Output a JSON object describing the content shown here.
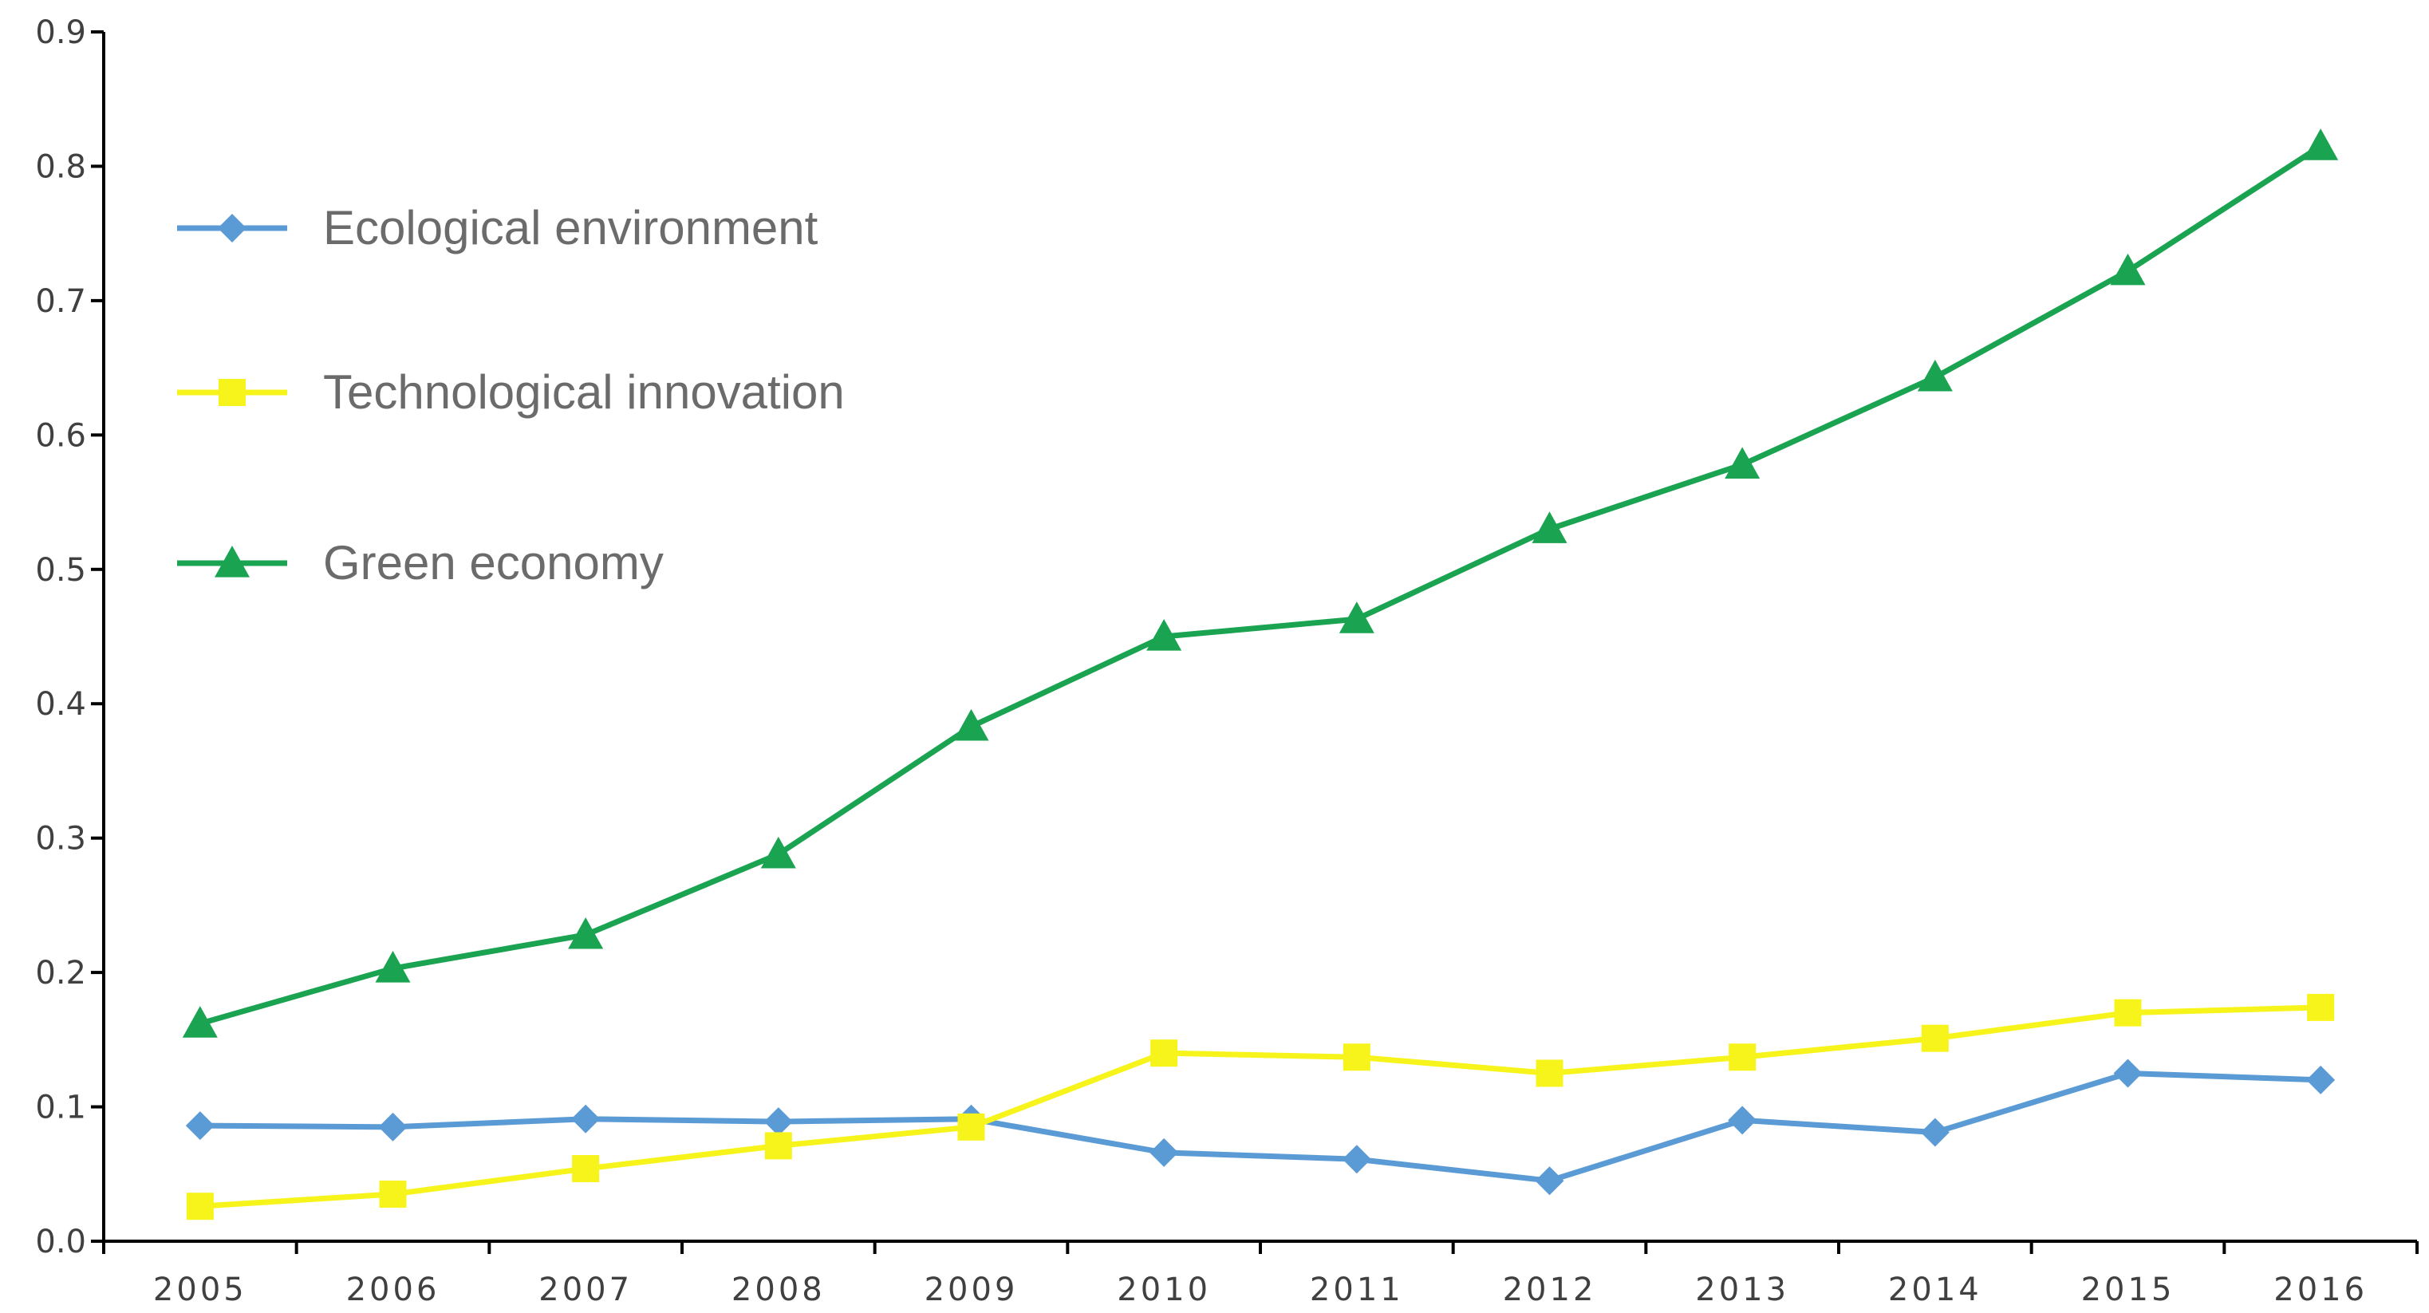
{
  "chart_data": {
    "type": "line",
    "title": "",
    "xlabel": "",
    "ylabel": "",
    "categories": [
      "2005",
      "2006",
      "2007",
      "2008",
      "2009",
      "2010",
      "2011",
      "2012",
      "2013",
      "2014",
      "2015",
      "2016"
    ],
    "ylim": [
      0,
      0.9
    ],
    "yticks": [
      "0.0",
      "0.1",
      "0.2",
      "0.3",
      "0.4",
      "0.5",
      "0.6",
      "0.7",
      "0.8",
      "0.9"
    ],
    "grid": false,
    "legend_position": "top-left",
    "series": [
      {
        "name": "Ecological environment",
        "marker": "diamond",
        "color": "#5b9bd5",
        "values": [
          0.086,
          0.085,
          0.091,
          0.089,
          0.091,
          0.066,
          0.061,
          0.045,
          0.09,
          0.081,
          0.125,
          0.12
        ]
      },
      {
        "name": "Technological innovation",
        "marker": "square",
        "color": "#f7f41c",
        "values": [
          0.026,
          0.035,
          0.054,
          0.071,
          0.085,
          0.14,
          0.137,
          0.125,
          0.137,
          0.151,
          0.17,
          0.174
        ]
      },
      {
        "name": "Green economy",
        "marker": "triangle",
        "color": "#1aa350",
        "values": [
          0.162,
          0.203,
          0.228,
          0.288,
          0.383,
          0.45,
          0.463,
          0.53,
          0.578,
          0.643,
          0.722,
          0.815
        ]
      }
    ]
  }
}
